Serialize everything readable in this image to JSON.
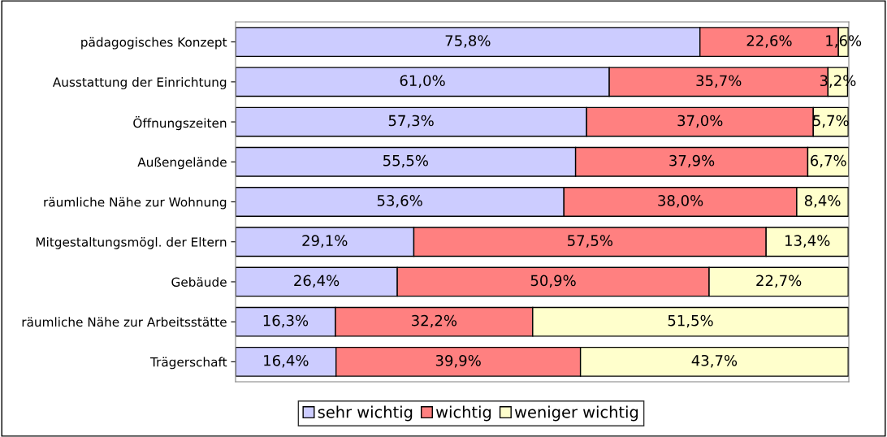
{
  "chart_data": {
    "type": "bar",
    "orientation": "horizontal",
    "stacked": true,
    "legend": "bottom",
    "grid": false,
    "categories": [
      "pädagogisches Konzept",
      "Ausstattung der Einrichtung",
      "Öffnungszeiten",
      "Außengelände",
      "räumliche Nähe zur Wohnung",
      "Mitgestaltungsmögl. der Eltern",
      "Gebäude",
      "räumliche Nähe zur Arbeitsstätte",
      "Trägerschaft"
    ],
    "series": [
      {
        "name": "sehr wichtig",
        "color": "#ccccff",
        "values": [
          75.8,
          61.0,
          57.3,
          55.5,
          53.6,
          29.1,
          26.4,
          16.3,
          16.4
        ],
        "value_labels": [
          "75,8%",
          "61,0%",
          "57,3%",
          "55,5%",
          "53,6%",
          "29,1%",
          "26,4%",
          "16,3%",
          "16,4%"
        ]
      },
      {
        "name": "wichtig",
        "color": "#ff8080",
        "values": [
          22.6,
          35.7,
          37.0,
          37.9,
          38.0,
          57.5,
          50.9,
          32.2,
          39.9
        ],
        "value_labels": [
          "22,6%",
          "35,7%",
          "37,0%",
          "37,9%",
          "38,0%",
          "57,5%",
          "50,9%",
          "32,2%",
          "39,9%"
        ]
      },
      {
        "name": "weniger wichtig",
        "color": "#ffffcc",
        "values": [
          1.6,
          3.2,
          5.7,
          6.7,
          8.4,
          13.4,
          22.7,
          51.5,
          43.7
        ],
        "value_labels": [
          "1,6%",
          "3,2%",
          "5,7%",
          "6,7%",
          "8,4%",
          "13,4%",
          "22,7%",
          "51,5%",
          "43,7%"
        ]
      }
    ]
  }
}
